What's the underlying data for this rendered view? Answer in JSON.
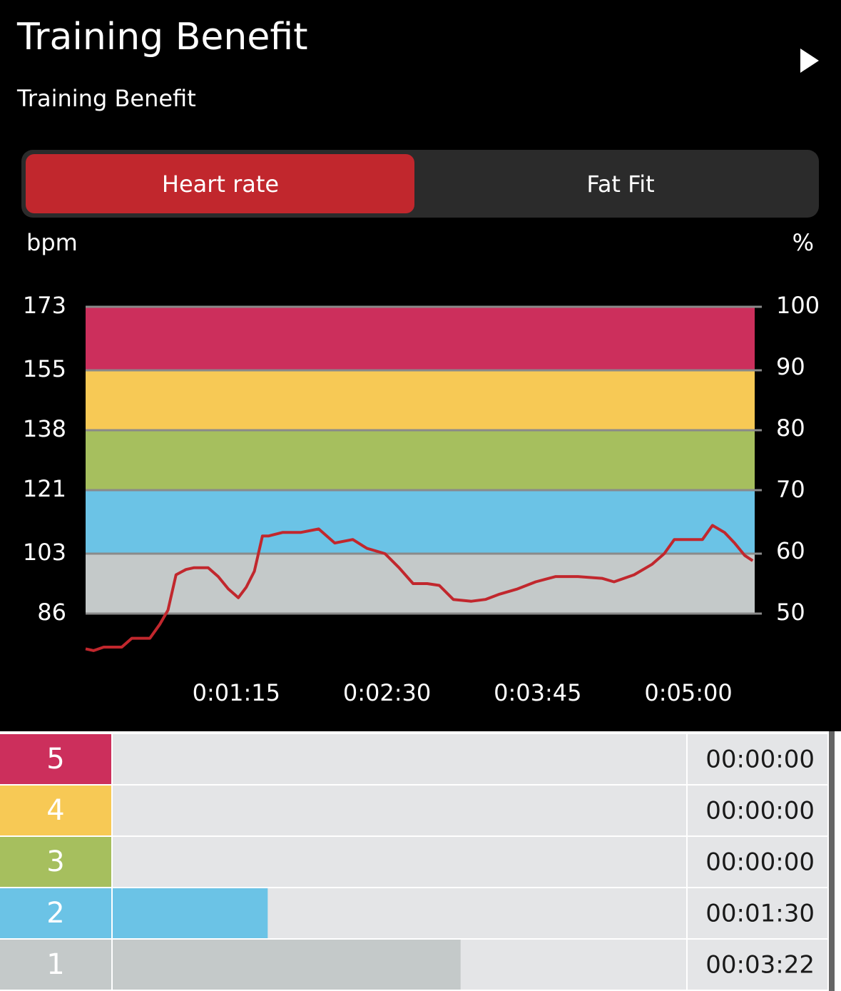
{
  "header": {
    "title": "Training Benefit",
    "subtitle": "Training Benefit"
  },
  "tabs": [
    "Heart rate",
    "Fat Fit"
  ],
  "chart_data": [
    {
      "type": "line",
      "y_label": "bpm",
      "y2_label": "%",
      "x": [
        0,
        4,
        9,
        18,
        23,
        32,
        37,
        41,
        45,
        50,
        54,
        61,
        66,
        71,
        76,
        80,
        84,
        88,
        91,
        98,
        107,
        116,
        124,
        133,
        140,
        149,
        156,
        163,
        170,
        176,
        183,
        192,
        199,
        206,
        215,
        224,
        234,
        245,
        257,
        263,
        273,
        282,
        288,
        293,
        302,
        307,
        312,
        318,
        323,
        328,
        332
      ],
      "values": [
        76,
        75.5,
        76.5,
        76.5,
        79,
        79,
        83,
        87,
        97,
        98.5,
        99,
        99,
        96.5,
        93,
        90.5,
        93.5,
        98,
        108,
        108,
        109,
        109,
        110,
        106,
        107,
        104.5,
        103,
        99,
        94.5,
        94.5,
        94,
        90,
        89.5,
        90,
        91.5,
        93,
        95,
        96.5,
        96.5,
        96,
        95,
        97,
        100,
        103,
        107,
        107,
        107,
        111,
        109,
        106,
        102.5,
        101
      ],
      "color": "#c1272d",
      "xlim": [
        0,
        333
      ],
      "xticks": [
        {
          "value": 75,
          "label": "0:01:15"
        },
        {
          "value": 150,
          "label": "0:02:30"
        },
        {
          "value": 225,
          "label": "0:03:45"
        },
        {
          "value": 300,
          "label": "0:05:00"
        }
      ],
      "ylim": [
        86,
        173
      ],
      "yticks": [
        86,
        103,
        121,
        138,
        155,
        173
      ],
      "y2lim": [
        50,
        100
      ],
      "y2ticks": [
        50,
        60,
        70,
        80,
        90,
        100
      ],
      "band_colors": [
        "#c4c9c9",
        "#6bc3e6",
        "#a6bf5e",
        "#f7c955",
        "#cc2f5c"
      ],
      "grid": true
    },
    {
      "type": "hbar",
      "categories": [
        "5",
        "4",
        "3",
        "2",
        "1"
      ],
      "values": [
        0,
        0,
        0,
        90,
        202
      ],
      "value_labels": [
        "00:00:00",
        "00:00:00",
        "00:00:00",
        "00:01:30",
        "00:03:22"
      ],
      "colors": [
        "#cc2f5c",
        "#f7c955",
        "#a6bf5e",
        "#6bc3e6",
        "#c4c9c9"
      ],
      "xlim": [
        0,
        333
      ]
    }
  ]
}
